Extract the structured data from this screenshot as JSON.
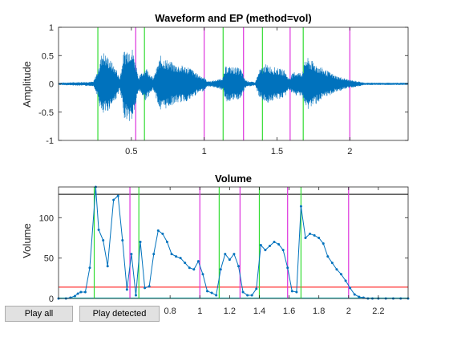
{
  "buttons": {
    "play_all": "Play all",
    "play_detected": "Play detected"
  },
  "colors": {
    "series": "#0072bd",
    "green_lines": "#33dd33",
    "magenta_lines": "#dd33dd",
    "threshold_high": "#000000",
    "threshold_low": "#ff0000",
    "baseline": "#00c8c8"
  },
  "chart_data": [
    {
      "type": "line",
      "title": "Waveform and EP (method=vol)",
      "xlabel": "",
      "ylabel": "Amplitude",
      "xlim": [
        0,
        2.4
      ],
      "ylim": [
        -1,
        1
      ],
      "xticks": [
        0.5,
        1,
        1.5,
        2
      ],
      "xtick_labels": [
        "0.5",
        "1",
        "1.5",
        "2"
      ],
      "yticks": [
        -1,
        -0.5,
        0,
        0.5,
        1
      ],
      "ytick_labels": [
        "-1",
        "-0.5",
        "0",
        "0.5",
        "1"
      ],
      "envelope": {
        "x": [
          0,
          0.24,
          0.27,
          0.3,
          0.35,
          0.4,
          0.42,
          0.45,
          0.5,
          0.53,
          0.55,
          0.6,
          0.65,
          0.7,
          0.8,
          0.9,
          0.95,
          1.0,
          1.02,
          1.05,
          1.1,
          1.13,
          1.15,
          1.2,
          1.25,
          1.28,
          1.3,
          1.35,
          1.38,
          1.42,
          1.5,
          1.55,
          1.58,
          1.62,
          1.67,
          1.7,
          1.8,
          1.9,
          2.0,
          2.05,
          2.1,
          2.4
        ],
        "amp": [
          0.02,
          0.04,
          0.25,
          0.6,
          0.45,
          0.25,
          0.1,
          0.6,
          0.7,
          0.4,
          0.12,
          0.3,
          0.1,
          0.5,
          0.35,
          0.3,
          0.18,
          0.12,
          0.05,
          0.05,
          0.08,
          0.12,
          0.32,
          0.3,
          0.28,
          0.08,
          0.05,
          0.03,
          0.25,
          0.35,
          0.28,
          0.25,
          0.1,
          0.22,
          0.2,
          0.48,
          0.3,
          0.15,
          0.07,
          0.05,
          0.02,
          0.02
        ]
      },
      "vlines_green": [
        0.27,
        0.59,
        1.13,
        1.4,
        1.68
      ],
      "vlines_magenta": [
        0.53,
        1.0,
        1.27,
        1.59,
        2.0
      ]
    },
    {
      "type": "line",
      "title": "Volume",
      "xlabel": "",
      "ylabel": "Volume",
      "xlim": [
        0.05,
        2.4
      ],
      "ylim": [
        0,
        138
      ],
      "xticks": [
        0.8,
        1,
        1.2,
        1.4,
        1.6,
        1.8,
        2,
        2.2
      ],
      "xtick_labels": [
        "0.8",
        "1",
        "1.2",
        "1.4",
        "1.6",
        "1.8",
        "2",
        "2.2"
      ],
      "yticks": [
        0,
        50,
        100
      ],
      "ytick_labels": [
        "0",
        "50",
        "100"
      ],
      "series": [
        {
          "x": [
            0.05,
            0.1,
            0.13,
            0.16,
            0.18,
            0.2,
            0.23,
            0.26,
            0.3,
            0.32,
            0.35,
            0.38,
            0.42,
            0.45,
            0.48,
            0.51,
            0.54,
            0.57,
            0.6,
            0.63,
            0.66,
            0.69,
            0.72,
            0.75,
            0.78,
            0.81,
            0.84,
            0.87,
            0.9,
            0.93,
            0.96,
            0.99,
            1.02,
            1.05,
            1.08,
            1.11,
            1.14,
            1.17,
            1.2,
            1.23,
            1.26,
            1.29,
            1.32,
            1.35,
            1.38,
            1.41,
            1.44,
            1.47,
            1.5,
            1.53,
            1.56,
            1.59,
            1.62,
            1.65,
            1.68,
            1.71,
            1.74,
            1.77,
            1.8,
            1.83,
            1.86,
            1.89,
            1.92,
            1.95,
            1.98,
            2.01,
            2.04,
            2.07,
            2.1,
            2.13,
            2.16,
            2.2,
            2.25,
            2.3,
            2.35,
            2.4
          ],
          "y": [
            0,
            0,
            1,
            3,
            6,
            8,
            8,
            38,
            138,
            85,
            72,
            40,
            122,
            127,
            72,
            11,
            55,
            4,
            70,
            13,
            15,
            55,
            84,
            80,
            70,
            55,
            52,
            50,
            44,
            38,
            36,
            46,
            30,
            9,
            7,
            4,
            36,
            55,
            48,
            55,
            40,
            8,
            4,
            4,
            12,
            66,
            60,
            65,
            70,
            67,
            60,
            38,
            9,
            8,
            114,
            75,
            80,
            78,
            75,
            68,
            52,
            44,
            36,
            30,
            22,
            13,
            5,
            2,
            1,
            0,
            0,
            0,
            0,
            0,
            0,
            0
          ]
        }
      ],
      "hlines": [
        {
          "y": 129,
          "color": "#000000"
        },
        {
          "y": 14,
          "color": "#ff0000"
        },
        {
          "y": 0.6,
          "color": "#00c8c8"
        }
      ],
      "vlines_green": [
        0.29,
        0.59,
        1.13,
        1.4,
        1.68
      ],
      "vlines_magenta": [
        0.53,
        1.0,
        1.27,
        1.59,
        2.0
      ]
    }
  ]
}
